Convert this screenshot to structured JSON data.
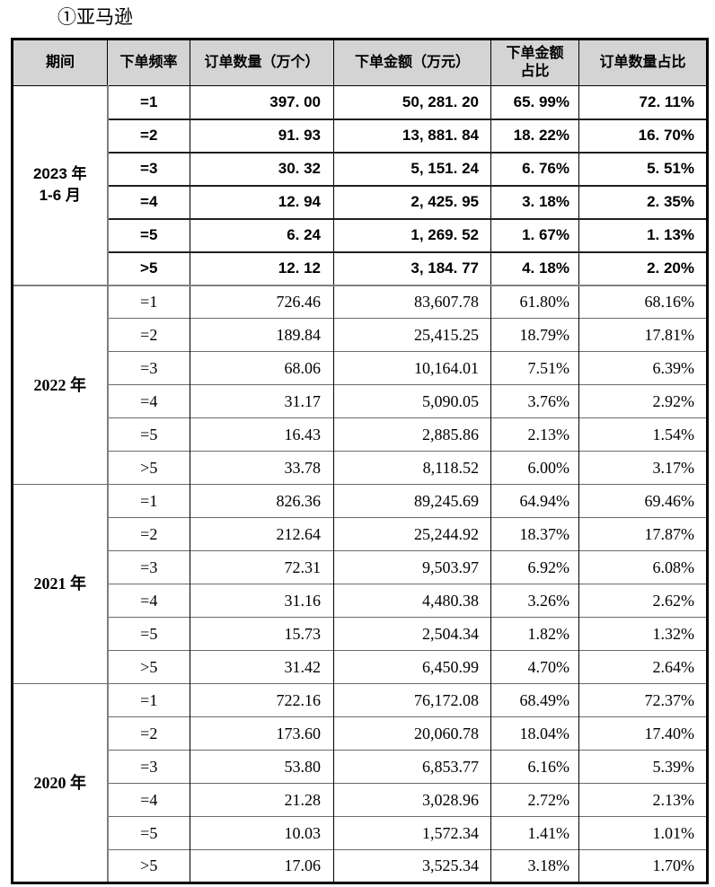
{
  "title": "①亚马逊",
  "table": {
    "headers": [
      "期间",
      "下单频率",
      "订单数量（万个）",
      "下单金额（万元）",
      "下单金额\n占比",
      "订单数量占比"
    ],
    "groups": [
      {
        "period": "2023 年\n1-6 月",
        "style": "bold",
        "rows": [
          [
            "=1",
            "397. 00",
            "50, 281. 20",
            "65. 99%",
            "72. 11%"
          ],
          [
            "=2",
            "91. 93",
            "13, 881. 84",
            "18. 22%",
            "16. 70%"
          ],
          [
            "=3",
            "30. 32",
            "5, 151. 24",
            "6. 76%",
            "5. 51%"
          ],
          [
            "=4",
            "12. 94",
            "2, 425. 95",
            "3. 18%",
            "2. 35%"
          ],
          [
            "=5",
            "6. 24",
            "1, 269. 52",
            "1. 67%",
            "1. 13%"
          ],
          [
            ">5",
            "12. 12",
            "3, 184. 77",
            "4. 18%",
            "2. 20%"
          ]
        ]
      },
      {
        "period": "2022 年",
        "style": "serif",
        "rows": [
          [
            "=1",
            "726.46",
            "83,607.78",
            "61.80%",
            "68.16%"
          ],
          [
            "=2",
            "189.84",
            "25,415.25",
            "18.79%",
            "17.81%"
          ],
          [
            "=3",
            "68.06",
            "10,164.01",
            "7.51%",
            "6.39%"
          ],
          [
            "=4",
            "31.17",
            "5,090.05",
            "3.76%",
            "2.92%"
          ],
          [
            "=5",
            "16.43",
            "2,885.86",
            "2.13%",
            "1.54%"
          ],
          [
            ">5",
            "33.78",
            "8,118.52",
            "6.00%",
            "3.17%"
          ]
        ]
      },
      {
        "period": "2021 年",
        "style": "serif",
        "rows": [
          [
            "=1",
            "826.36",
            "89,245.69",
            "64.94%",
            "69.46%"
          ],
          [
            "=2",
            "212.64",
            "25,244.92",
            "18.37%",
            "17.87%"
          ],
          [
            "=3",
            "72.31",
            "9,503.97",
            "6.92%",
            "6.08%"
          ],
          [
            "=4",
            "31.16",
            "4,480.38",
            "3.26%",
            "2.62%"
          ],
          [
            "=5",
            "15.73",
            "2,504.34",
            "1.82%",
            "1.32%"
          ],
          [
            ">5",
            "31.42",
            "6,450.99",
            "4.70%",
            "2.64%"
          ]
        ]
      },
      {
        "period": "2020 年",
        "style": "serif",
        "rows": [
          [
            "=1",
            "722.16",
            "76,172.08",
            "68.49%",
            "72.37%"
          ],
          [
            "=2",
            "173.60",
            "20,060.78",
            "18.04%",
            "17.40%"
          ],
          [
            "=3",
            "53.80",
            "6,853.77",
            "6.16%",
            "5.39%"
          ],
          [
            "=4",
            "21.28",
            "3,028.96",
            "2.72%",
            "2.13%"
          ],
          [
            "=5",
            "10.03",
            "1,572.34",
            "1.41%",
            "1.01%"
          ],
          [
            ">5",
            "17.06",
            "3,525.34",
            "3.18%",
            "1.70%"
          ]
        ]
      }
    ]
  }
}
